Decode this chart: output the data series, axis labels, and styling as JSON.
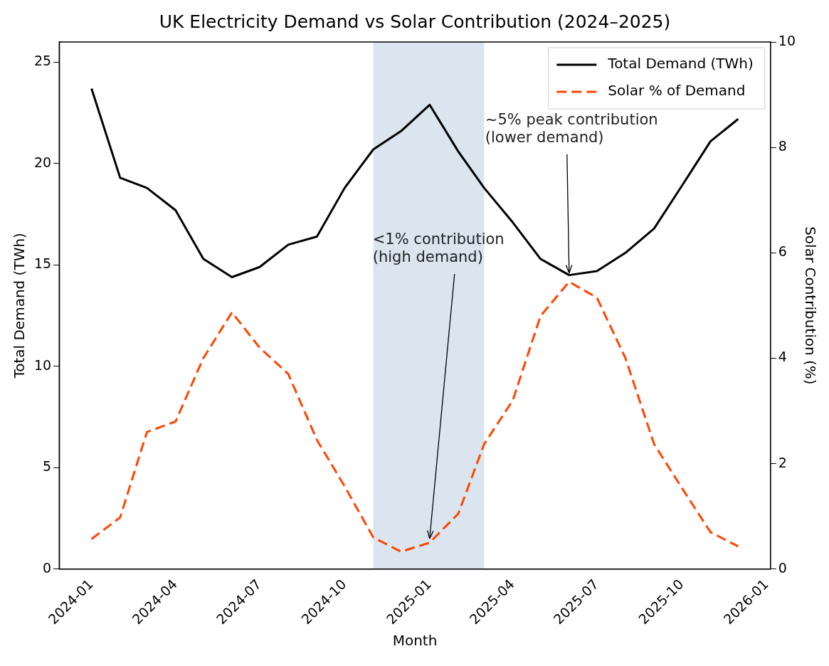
{
  "chart_data": {
    "type": "line",
    "title": "UK Electricity Demand vs Solar Contribution (2024–2025)",
    "xlabel": "Month",
    "ylabel": "Total Demand (TWh)",
    "y2label": "Solar Contribution (%)",
    "x": [
      "2024-01",
      "2024-02",
      "2024-03",
      "2024-04",
      "2024-05",
      "2024-06",
      "2024-07",
      "2024-08",
      "2024-09",
      "2024-10",
      "2024-11",
      "2024-12",
      "2025-01",
      "2025-02",
      "2025-03",
      "2025-04",
      "2025-05",
      "2025-06",
      "2025-07",
      "2025-08",
      "2025-09",
      "2025-10",
      "2025-11",
      "2025-12"
    ],
    "series": [
      {
        "name": "Total Demand (TWh)",
        "color": "#000000",
        "line_style": "solid",
        "values": [
          23.7,
          19.3,
          18.8,
          17.7,
          15.3,
          14.4,
          14.9,
          16.0,
          16.4,
          18.8,
          20.7,
          21.6,
          22.9,
          20.6,
          18.8,
          17.1,
          15.3,
          14.5,
          14.7,
          15.6,
          16.8,
          18.9,
          21.1,
          22.2
        ]
      },
      {
        "name": "Solar % of Demand",
        "color": "#ff4500",
        "line_style": "dashed",
        "axis": "y2",
        "values": [
          0.57,
          0.98,
          2.6,
          2.8,
          4.0,
          4.87,
          4.2,
          3.7,
          2.45,
          1.57,
          0.6,
          0.33,
          0.5,
          1.05,
          2.37,
          3.2,
          4.8,
          5.45,
          5.15,
          4.0,
          2.37,
          1.54,
          0.7,
          0.43
        ]
      }
    ],
    "xlim": [
      "2023-11-27",
      "2026-01-05"
    ],
    "xticks": [
      "2024-01",
      "2024-04",
      "2024-07",
      "2024-10",
      "2025-01",
      "2025-04",
      "2025-07",
      "2025-10",
      "2026-01"
    ],
    "ylim": [
      0,
      26
    ],
    "yticks": [
      0,
      5,
      10,
      15,
      20,
      25
    ],
    "y2lim": [
      0,
      10
    ],
    "y2ticks": [
      0,
      2,
      4,
      6,
      8,
      10
    ],
    "bands": [
      {
        "axis": "x",
        "from": "2024-11-01",
        "to": "2025-03-01",
        "color": "#dae5f0"
      }
    ],
    "annotations": [
      {
        "text": "<1% contribution\n(high demand)",
        "x": "2025-01",
        "y": 1.5
      },
      {
        "text": "~5% peak contribution\n(lower demand)",
        "x": "2025-06",
        "y": 14.6
      }
    ],
    "legend": "top right",
    "grid": false
  }
}
